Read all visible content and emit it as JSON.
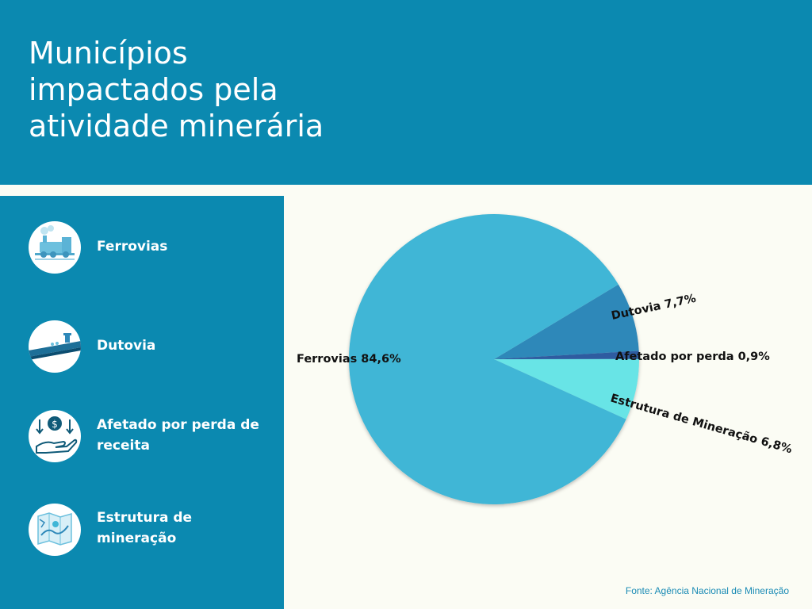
{
  "header": {
    "title_lines": [
      "Municípios",
      "impactados pela",
      "atividade minerária"
    ]
  },
  "legend": [
    {
      "label": "Ferrovias",
      "icon": "train-icon"
    },
    {
      "label": "Dutovia",
      "icon": "pipeline-icon"
    },
    {
      "label": "Afetado por perda de receita",
      "icon": "money-hand-icon"
    },
    {
      "label": "Estrutura de mineração",
      "icon": "mining-map-icon"
    }
  ],
  "source": "Fonte: Agência Nacional de Mineração",
  "chart_data": {
    "type": "pie",
    "categories": [
      "Ferrovias",
      "Dutovia",
      "Afetado por perda",
      "Estrutura de Mineração"
    ],
    "values": [
      84.6,
      7.7,
      0.9,
      6.8
    ],
    "labels": [
      "Ferrovias 84,6%",
      "Dutovia 7,7%",
      "Afetado por perda 0,9%",
      "Estrutura de Mineração 6,8%"
    ],
    "colors": [
      "#41b6d6",
      "#2e88b9",
      "#2d5ba0",
      "#68e4e6"
    ],
    "title": ""
  },
  "colors": {
    "header_bg": "#0b89b0",
    "page_bg": "#fbfcf4",
    "source_text": "#1a8bb5"
  }
}
